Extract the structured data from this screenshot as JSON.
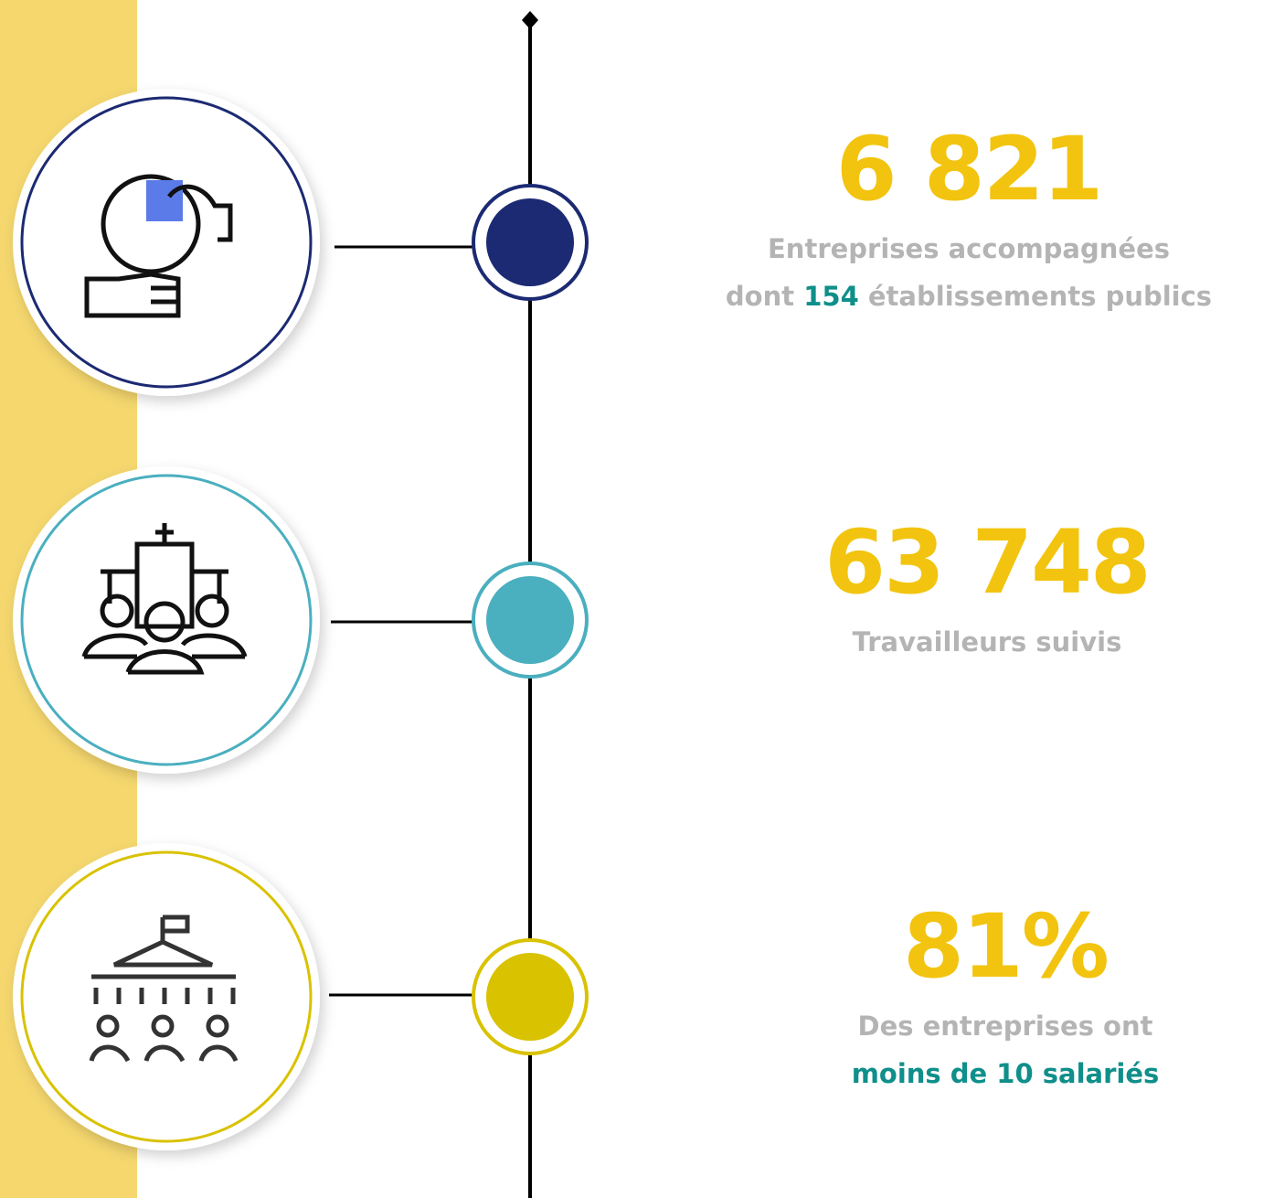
{
  "items": [
    {
      "stat": "6 821",
      "line1": "Entreprises accompagnées",
      "line2": {
        "before": "dont",
        "highlight": "154",
        "after": "établissements publics"
      }
    },
    {
      "stat": "63 748",
      "line1": "Travailleurs suivis"
    },
    {
      "stat": "81%",
      "line1": "Des entreprises ont",
      "line2": {
        "highlight": "moins de 10 salariés"
      }
    }
  ]
}
